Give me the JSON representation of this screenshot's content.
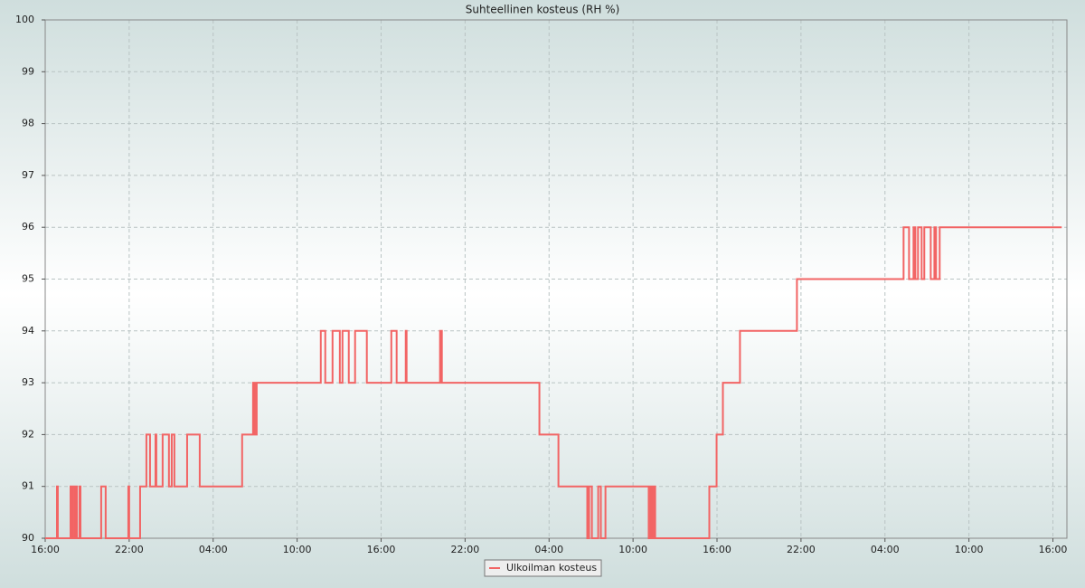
{
  "chart_data": {
    "type": "line",
    "title": "Suhteellinen kosteus (RH %)",
    "step": "post",
    "grid": true,
    "legend": "bottom",
    "xlim": [
      0,
      73
    ],
    "xticks": [
      {
        "value": 0,
        "label": "16:00"
      },
      {
        "value": 6,
        "label": "22:00"
      },
      {
        "value": 12,
        "label": "04:00"
      },
      {
        "value": 18,
        "label": "10:00"
      },
      {
        "value": 24,
        "label": "16:00"
      },
      {
        "value": 30,
        "label": "22:00"
      },
      {
        "value": 36,
        "label": "04:00"
      },
      {
        "value": 42,
        "label": "10:00"
      },
      {
        "value": 48,
        "label": "16:00"
      },
      {
        "value": 54,
        "label": "22:00"
      },
      {
        "value": 60,
        "label": "04:00"
      },
      {
        "value": 66,
        "label": "10:00"
      },
      {
        "value": 72,
        "label": "16:00"
      }
    ],
    "ylim": [
      90,
      100
    ],
    "yticks": [
      90,
      91,
      92,
      93,
      94,
      95,
      96,
      97,
      98,
      99,
      100
    ],
    "x": [
      0,
      0.84,
      0.9,
      1.81,
      1.87,
      1.94,
      2.0,
      2.13,
      2.26,
      2.45,
      2.52,
      4.0,
      4.32,
      5.94,
      6.0,
      6.78,
      7.23,
      7.49,
      7.88,
      7.94,
      8.39,
      8.84,
      9.04,
      9.23,
      10.14,
      11.04,
      14.07,
      14.85,
      14.98,
      15.11,
      19.69,
      20.01,
      20.53,
      21.05,
      21.24,
      21.69,
      22.14,
      22.98,
      24.73,
      25.11,
      25.76,
      25.82,
      28.21,
      28.34,
      35.31,
      36.67,
      38.73,
      38.86,
      39.06,
      39.51,
      39.7,
      40.03,
      43.12,
      43.25,
      43.38,
      43.51,
      43.58,
      47.45,
      47.97,
      48.42,
      49.64,
      53.71,
      61.33,
      61.72,
      62.04,
      62.17,
      62.36,
      62.62,
      62.81,
      63.27,
      63.53,
      63.65,
      63.91,
      72.63
    ],
    "series": [
      {
        "name": "Ulkoilman kosteus",
        "color": "#f26464",
        "values": [
          90,
          91,
          90,
          91,
          90,
          91,
          90,
          91,
          90,
          91,
          90,
          91,
          90,
          91,
          90,
          91,
          92,
          91,
          92,
          91,
          92,
          91,
          92,
          91,
          92,
          91,
          92,
          93,
          92,
          93,
          94,
          93,
          94,
          93,
          94,
          93,
          94,
          93,
          94,
          93,
          94,
          93,
          94,
          93,
          92,
          91,
          90,
          91,
          90,
          91,
          90,
          91,
          90,
          91,
          90,
          91,
          90,
          91,
          92,
          93,
          94,
          95,
          96,
          95,
          96,
          95,
          96,
          95,
          96,
          95,
          96,
          95,
          96,
          96
        ]
      }
    ]
  }
}
